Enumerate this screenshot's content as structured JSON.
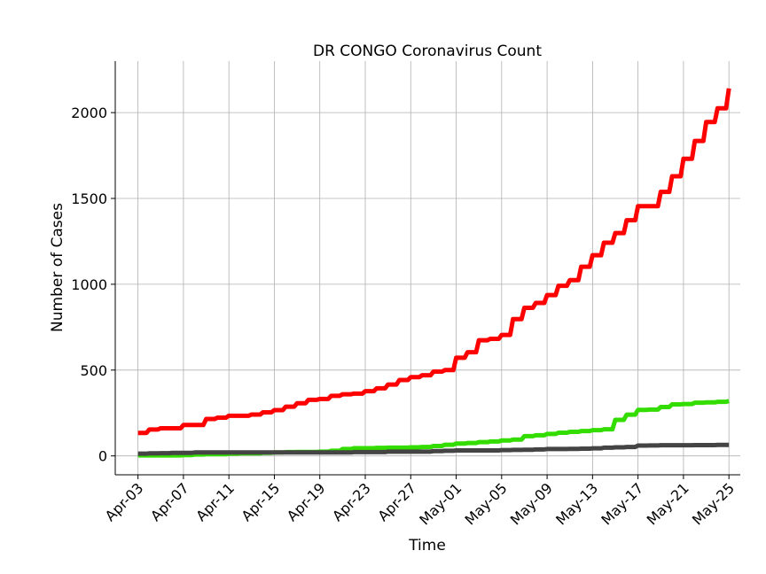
{
  "chart_data": {
    "type": "line",
    "title": "DR CONGO Coronavirus Count",
    "xlabel": "Time",
    "ylabel": "Number of Cases",
    "ylim": [
      -110,
      2300
    ],
    "yticks": [
      0,
      500,
      1000,
      1500,
      2000
    ],
    "xrange": [
      "2020-04-01",
      "2020-05-26"
    ],
    "xticks": [
      {
        "date": "2020-04-03",
        "label": "Apr-03"
      },
      {
        "date": "2020-04-07",
        "label": "Apr-07"
      },
      {
        "date": "2020-04-11",
        "label": "Apr-11"
      },
      {
        "date": "2020-04-15",
        "label": "Apr-15"
      },
      {
        "date": "2020-04-19",
        "label": "Apr-19"
      },
      {
        "date": "2020-04-23",
        "label": "Apr-23"
      },
      {
        "date": "2020-04-27",
        "label": "Apr-27"
      },
      {
        "date": "2020-05-01",
        "label": "May-01"
      },
      {
        "date": "2020-05-05",
        "label": "May-05"
      },
      {
        "date": "2020-05-09",
        "label": "May-09"
      },
      {
        "date": "2020-05-13",
        "label": "May-13"
      },
      {
        "date": "2020-05-17",
        "label": "May-17"
      },
      {
        "date": "2020-05-21",
        "label": "May-21"
      },
      {
        "date": "2020-05-25",
        "label": "May-25"
      }
    ],
    "grid": true,
    "x": [
      "2020-04-03",
      "2020-04-04",
      "2020-04-05",
      "2020-04-06",
      "2020-04-07",
      "2020-04-08",
      "2020-04-09",
      "2020-04-10",
      "2020-04-11",
      "2020-04-12",
      "2020-04-13",
      "2020-04-14",
      "2020-04-15",
      "2020-04-16",
      "2020-04-17",
      "2020-04-18",
      "2020-04-19",
      "2020-04-20",
      "2020-04-21",
      "2020-04-22",
      "2020-04-23",
      "2020-04-24",
      "2020-04-25",
      "2020-04-26",
      "2020-04-27",
      "2020-04-28",
      "2020-04-29",
      "2020-04-30",
      "2020-05-01",
      "2020-05-02",
      "2020-05-03",
      "2020-05-04",
      "2020-05-05",
      "2020-05-06",
      "2020-05-07",
      "2020-05-08",
      "2020-05-09",
      "2020-05-10",
      "2020-05-11",
      "2020-05-12",
      "2020-05-13",
      "2020-05-14",
      "2020-05-15",
      "2020-05-16",
      "2020-05-17",
      "2020-05-18",
      "2020-05-19",
      "2020-05-20",
      "2020-05-21",
      "2020-05-22",
      "2020-05-23",
      "2020-05-24",
      "2020-05-25"
    ],
    "series": [
      {
        "color": "#ff0000",
        "values": [
          134,
          154,
          161,
          161,
          180,
          180,
          215,
          223,
          234,
          234,
          241,
          254,
          267,
          287,
          307,
          327,
          332,
          350,
          359,
          363,
          377,
          394,
          416,
          442,
          459,
          470,
          491,
          500,
          572,
          604,
          674,
          682,
          705,
          797,
          863,
          891,
          937,
          991,
          1024,
          1102,
          1169,
          1242,
          1298,
          1373,
          1455,
          1455,
          1538,
          1629,
          1731,
          1835,
          1945,
          2025,
          2141
        ]
      },
      {
        "color": "#33dd00",
        "values": [
          3,
          3,
          3,
          3,
          5,
          8,
          10,
          10,
          13,
          15,
          15,
          18,
          20,
          22,
          23,
          23,
          25,
          30,
          40,
          45,
          45,
          47,
          48,
          48,
          50,
          52,
          58,
          65,
          72,
          75,
          80,
          84,
          90,
          95,
          115,
          120,
          128,
          135,
          140,
          145,
          150,
          155,
          210,
          240,
          268,
          270,
          285,
          300,
          302,
          310,
          312,
          315,
          320
        ]
      },
      {
        "color": "#444444",
        "values": [
          13,
          15,
          16,
          18,
          18,
          20,
          20,
          20,
          20,
          20,
          20,
          20,
          20,
          20,
          20,
          20,
          20,
          20,
          20,
          22,
          22,
          22,
          25,
          25,
          25,
          25,
          28,
          30,
          32,
          32,
          32,
          32,
          34,
          35,
          36,
          38,
          40,
          40,
          41,
          42,
          44,
          48,
          50,
          52,
          60,
          61,
          62,
          62,
          62,
          63,
          63,
          64,
          64
        ]
      }
    ]
  }
}
